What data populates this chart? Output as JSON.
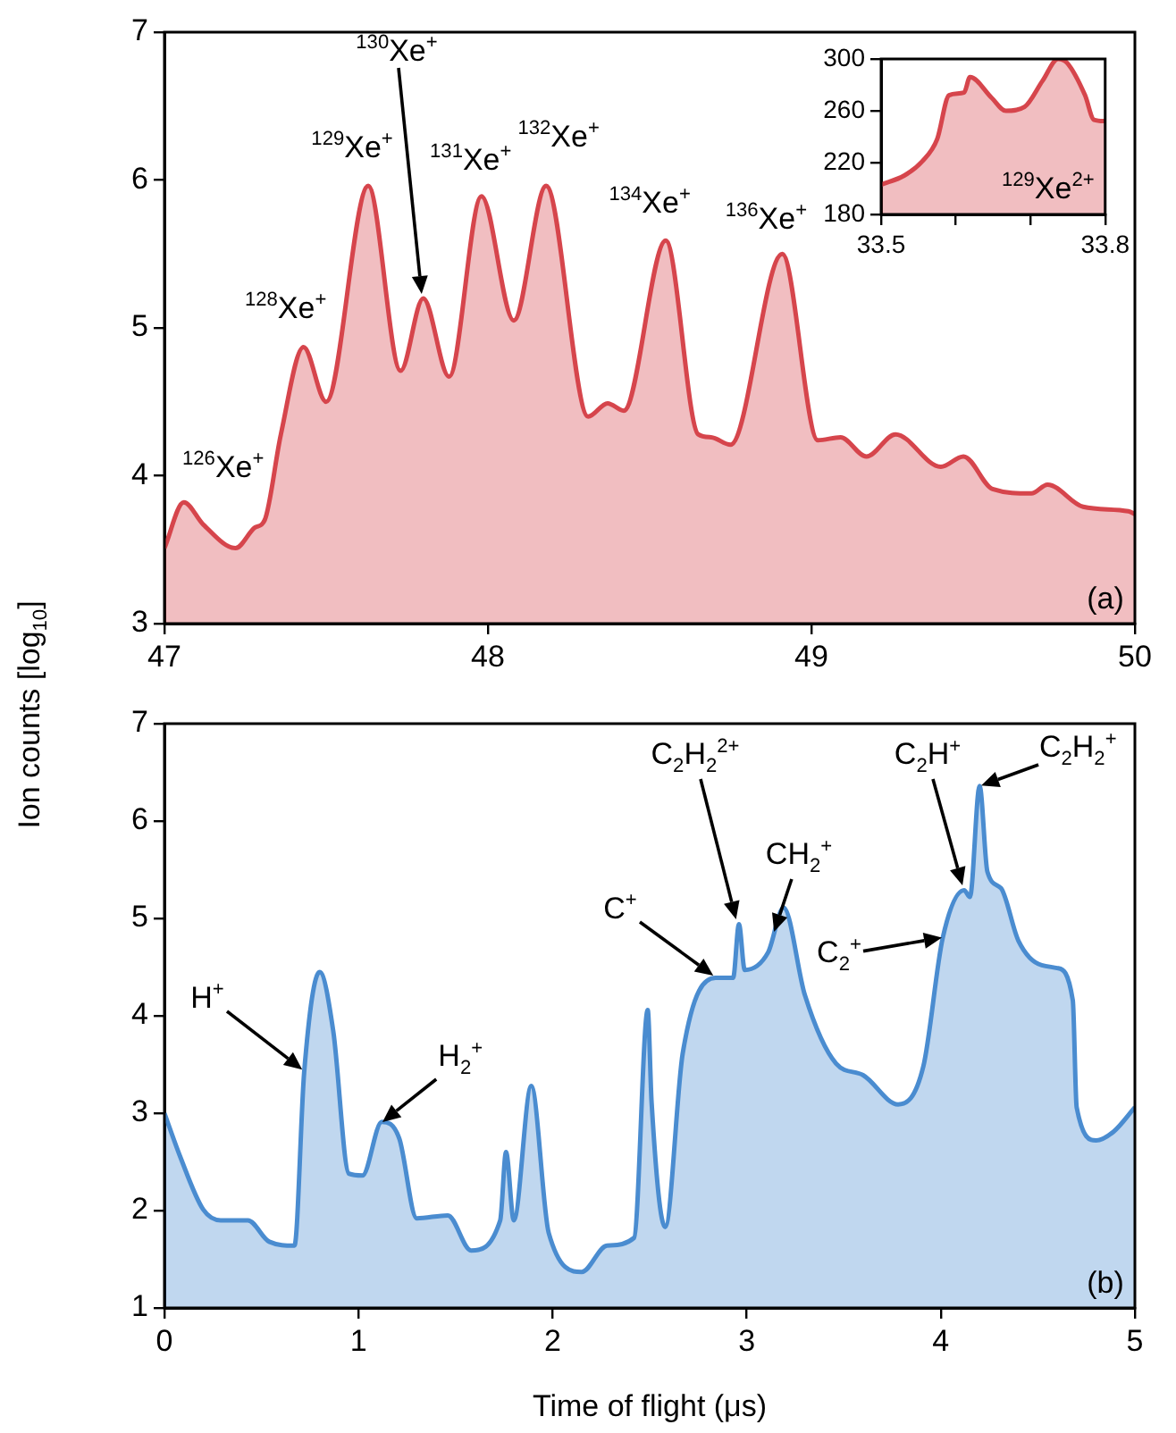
{
  "chart_data": [
    {
      "type": "area",
      "ylabel": "Ion counts [log$_{10}$]",
      "xlim": [
        47,
        50
      ],
      "xticks": [
        47,
        48,
        49,
        50
      ],
      "ylim": [
        3,
        7
      ],
      "yticks": [
        3,
        4,
        5,
        6,
        7
      ],
      "x": [
        47.0,
        47.06,
        47.12,
        47.22,
        47.28,
        47.31,
        47.36,
        47.43,
        47.5,
        47.63,
        47.73,
        47.8,
        47.88,
        47.98,
        48.08,
        48.18,
        48.31,
        48.37,
        48.42,
        48.55,
        48.65,
        48.69,
        48.75,
        48.91,
        49.02,
        49.09,
        49.17,
        49.26,
        49.4,
        49.47,
        49.56,
        49.68,
        49.73,
        49.84,
        49.98,
        50.0
      ],
      "series": [
        {
          "color": "#d6454c",
          "values": [
            3.51,
            3.82,
            3.67,
            3.51,
            3.65,
            3.7,
            4.28,
            4.87,
            4.5,
            5.96,
            4.71,
            5.2,
            4.67,
            5.89,
            5.05,
            5.96,
            4.4,
            4.49,
            4.44,
            5.59,
            4.28,
            4.26,
            4.21,
            5.5,
            4.24,
            4.26,
            4.13,
            4.28,
            4.06,
            4.13,
            3.91,
            3.88,
            3.94,
            3.79,
            3.76,
            3.74
          ]
        }
      ],
      "annotations": [
        {
          "text": "$^{126}$Xe$^{+}$",
          "x": 47.06,
          "y": 3.82
        },
        {
          "text": "$^{128}$Xe$^{+}$",
          "x": 47.43,
          "y": 4.87
        },
        {
          "text": "$^{129}$Xe$^{+}$",
          "x": 47.63,
          "y": 5.96
        },
        "$^{130}$Xe$^{+}$",
        {
          "text": "$^{131}$Xe$^{+}$",
          "x": 47.98,
          "y": 5.89
        },
        {
          "text": "$^{132}$Xe$^{+}$",
          "x": 48.18,
          "y": 5.96
        },
        {
          "text": "$^{134}$Xe$^{+}$",
          "x": 48.55,
          "y": 5.59
        },
        {
          "text": "$^{136}$Xe$^{+}$",
          "x": 48.91,
          "y": 5.5
        },
        "(a)"
      ]
    },
    {
      "type": "area",
      "xlim": [
        33.5,
        33.8
      ],
      "xticks": [
        33.5,
        {
          "value": 33.6,
          "label": null
        },
        {
          "value": 33.7,
          "label": null
        },
        33.8
      ],
      "ylim": [
        180,
        300
      ],
      "yticks": [
        180,
        220,
        260,
        300
      ],
      "x": [
        33.5,
        33.531,
        33.555,
        33.575,
        33.591,
        33.611,
        33.619,
        33.648,
        33.667,
        33.692,
        33.716,
        33.737,
        33.749,
        33.773,
        33.785,
        33.8
      ],
      "series": [
        {
          "color": "#d6454c",
          "values": [
            203,
            210,
            221,
            238,
            272,
            274,
            286,
            270,
            260,
            263,
            283,
            300,
            297,
            272,
            253,
            252
          ]
        }
      ],
      "annotations": [
        "$^{129}$Xe$^{2+}$"
      ]
    },
    {
      "type": "area",
      "xlabel": "Time of flight (μs)",
      "xlim": [
        0,
        5
      ],
      "xticks": [
        0,
        1,
        2,
        3,
        4,
        5
      ],
      "ylim": [
        1,
        7
      ],
      "yticks": [
        1,
        2,
        3,
        4,
        5,
        6,
        7
      ],
      "x": [
        0,
        0.08,
        0.2,
        0.29,
        0.43,
        0.54,
        0.67,
        0.72,
        0.8,
        0.87,
        0.95,
        1.02,
        1.12,
        1.21,
        1.3,
        1.46,
        1.58,
        1.73,
        1.76,
        1.8,
        1.89,
        1.98,
        2.15,
        2.28,
        2.42,
        2.49,
        2.51,
        2.58,
        2.67,
        2.84,
        2.93,
        2.96,
        2.99,
        3.11,
        3.19,
        3.3,
        3.46,
        3.6,
        3.78,
        3.91,
        4.01,
        4.12,
        4.15,
        4.2,
        4.24,
        4.31,
        4.4,
        4.52,
        4.6,
        4.68,
        4.7,
        4.8,
        4.89,
        5.0
      ],
      "series": [
        {
          "color": "#4a8cd0",
          "values": [
            3.0,
            2.56,
            2.01,
            1.9,
            1.9,
            1.68,
            1.64,
            3.42,
            4.45,
            3.84,
            2.38,
            2.36,
            2.91,
            2.74,
            1.92,
            1.95,
            1.59,
            1.9,
            2.6,
            1.9,
            3.28,
            1.77,
            1.37,
            1.64,
            1.72,
            4.06,
            3.11,
            1.83,
            3.61,
            4.39,
            4.39,
            4.94,
            4.47,
            4.65,
            5.11,
            4.21,
            3.51,
            3.39,
            3.09,
            3.48,
            4.8,
            5.29,
            5.22,
            6.36,
            5.48,
            5.31,
            4.77,
            4.52,
            4.49,
            4.16,
            3.06,
            2.72,
            2.81,
            3.06
          ]
        }
      ],
      "annotations": [
        "H$^{+}$",
        {
          "text": "H$_{2}$$^{+}$",
          "x": 1.12,
          "y": 2.91
        },
        "C$^{+}$",
        "C$_{2}$H$_{2}$$^{2+}$",
        {
          "text": "CH$_{2}$$^{+}$",
          "x": 3.14,
          "y": 4.85
        },
        {
          "text": "C$_{2}$$^{+}$",
          "x": 4.01,
          "y": 4.8
        },
        "C$_{2}$H$^{+}$",
        {
          "text": "C$_{2}$H$_{2}$$^{+}$",
          "x": 4.2,
          "y": 6.36
        },
        "(b)"
      ]
    }
  ]
}
